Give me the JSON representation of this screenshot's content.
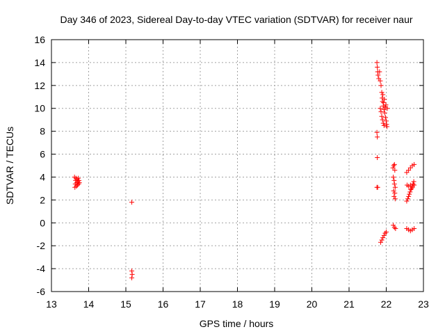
{
  "chart_data": {
    "type": "scatter",
    "title": "Day 346 of 2023, Sidereal Day-to-day VTEC variation (SDTVAR) for receiver naur",
    "xlabel": "GPS time / hours",
    "ylabel": "SDTVAR / TECUs",
    "xlim": [
      13,
      23
    ],
    "ylim": [
      -6,
      16
    ],
    "xticks": [
      13,
      14,
      15,
      16,
      17,
      18,
      19,
      20,
      21,
      22,
      23
    ],
    "yticks": [
      -6,
      -4,
      -2,
      0,
      2,
      4,
      6,
      8,
      10,
      12,
      14,
      16
    ],
    "grid": true,
    "marker": "plus",
    "color": "#ff0000",
    "series": [
      {
        "name": "SDTVAR",
        "points": [
          [
            13.62,
            4.0
          ],
          [
            13.63,
            3.1
          ],
          [
            13.64,
            3.4
          ],
          [
            13.65,
            3.7
          ],
          [
            13.66,
            3.9
          ],
          [
            13.67,
            3.2
          ],
          [
            13.68,
            3.5
          ],
          [
            13.69,
            3.8
          ],
          [
            13.7,
            3.3
          ],
          [
            13.71,
            3.6
          ],
          [
            13.72,
            3.9
          ],
          [
            13.73,
            3.4
          ],
          [
            13.74,
            3.7
          ],
          [
            13.75,
            3.5
          ],
          [
            15.16,
            1.8
          ],
          [
            15.16,
            -4.2
          ],
          [
            15.17,
            -4.5
          ],
          [
            15.16,
            -4.8
          ],
          [
            21.75,
            14.0
          ],
          [
            21.76,
            13.6
          ],
          [
            21.77,
            13.2
          ],
          [
            21.78,
            12.9
          ],
          [
            21.8,
            12.6
          ],
          [
            21.82,
            13.2
          ],
          [
            21.84,
            12.4
          ],
          [
            21.86,
            12.0
          ],
          [
            21.88,
            11.4
          ],
          [
            21.89,
            10.9
          ],
          [
            21.9,
            10.6
          ],
          [
            21.91,
            11.2
          ],
          [
            21.92,
            10.2
          ],
          [
            21.93,
            10.5
          ],
          [
            21.94,
            9.9
          ],
          [
            21.95,
            10.8
          ],
          [
            21.96,
            9.6
          ],
          [
            21.97,
            10.1
          ],
          [
            21.98,
            9.2
          ],
          [
            21.99,
            10.3
          ],
          [
            22.0,
            8.9
          ],
          [
            22.01,
            8.6
          ],
          [
            22.02,
            8.4
          ],
          [
            22.03,
            10.0
          ],
          [
            21.84,
            10.0
          ],
          [
            21.86,
            9.7
          ],
          [
            21.88,
            9.3
          ],
          [
            21.9,
            9.0
          ],
          [
            21.92,
            8.7
          ],
          [
            21.94,
            8.5
          ],
          [
            21.75,
            7.9
          ],
          [
            21.76,
            7.5
          ],
          [
            21.76,
            5.7
          ],
          [
            21.75,
            3.1
          ],
          [
            21.77,
            3.1
          ],
          [
            21.85,
            -1.7
          ],
          [
            21.88,
            -1.5
          ],
          [
            21.91,
            -1.3
          ],
          [
            21.94,
            -1.1
          ],
          [
            21.97,
            -0.9
          ],
          [
            22.0,
            -0.8
          ],
          [
            22.18,
            4.8
          ],
          [
            22.2,
            5.0
          ],
          [
            22.22,
            5.1
          ],
          [
            22.23,
            4.6
          ],
          [
            22.19,
            4.0
          ],
          [
            22.21,
            3.7
          ],
          [
            22.22,
            3.4
          ],
          [
            22.24,
            3.1
          ],
          [
            22.2,
            2.8
          ],
          [
            22.23,
            2.6
          ],
          [
            22.21,
            2.3
          ],
          [
            22.24,
            2.1
          ],
          [
            22.19,
            -0.2
          ],
          [
            22.22,
            -0.4
          ],
          [
            22.25,
            -0.5
          ],
          [
            22.55,
            4.4
          ],
          [
            22.6,
            4.6
          ],
          [
            22.65,
            4.8
          ],
          [
            22.7,
            5.0
          ],
          [
            22.75,
            5.1
          ],
          [
            22.56,
            3.3
          ],
          [
            22.6,
            3.2
          ],
          [
            22.65,
            3.3
          ],
          [
            22.7,
            3.2
          ],
          [
            22.75,
            3.3
          ],
          [
            22.55,
            1.9
          ],
          [
            22.58,
            2.1
          ],
          [
            22.6,
            2.3
          ],
          [
            22.62,
            2.5
          ],
          [
            22.64,
            2.7
          ],
          [
            22.66,
            2.9
          ],
          [
            22.68,
            3.0
          ],
          [
            22.7,
            3.1
          ],
          [
            22.72,
            3.4
          ],
          [
            22.74,
            3.6
          ],
          [
            22.55,
            -0.5
          ],
          [
            22.6,
            -0.6
          ],
          [
            22.65,
            -0.7
          ],
          [
            22.7,
            -0.6
          ],
          [
            22.75,
            -0.5
          ]
        ]
      }
    ]
  }
}
